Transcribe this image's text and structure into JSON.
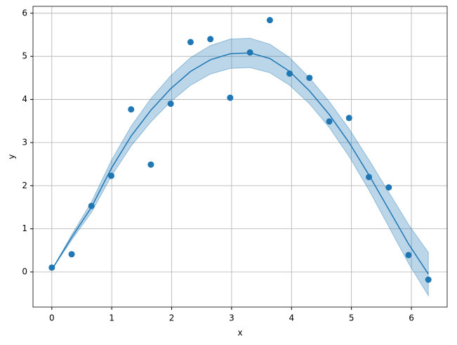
{
  "chart_data": {
    "type": "scatter-fit",
    "x_label": "x",
    "y_label": "y",
    "x": [
      0,
      0.331,
      0.661,
      0.992,
      1.323,
      1.653,
      1.984,
      2.315,
      2.646,
      2.976,
      3.307,
      3.638,
      3.968,
      4.299,
      4.63,
      4.96,
      5.291,
      5.622,
      5.952,
      6.283
    ],
    "series": [
      {
        "type": "scatter",
        "color": "#1f77b4",
        "values": [
          0.1,
          0.41,
          1.53,
          2.23,
          3.77,
          2.49,
          3.9,
          5.33,
          5.4,
          4.04,
          5.09,
          5.84,
          4.6,
          4.5,
          3.49,
          3.57,
          2.2,
          1.96,
          0.39,
          -0.18
        ]
      },
      {
        "type": "line",
        "color": "#1f77b4",
        "values": [
          0.05,
          0.8,
          1.5,
          2.4,
          3.15,
          3.75,
          4.25,
          4.65,
          4.92,
          5.06,
          5.08,
          4.95,
          4.65,
          4.2,
          3.65,
          3.0,
          2.25,
          1.45,
          0.65,
          -0.05
        ],
        "lower": [
          0.05,
          0.74,
          1.38,
          2.22,
          2.92,
          3.48,
          3.95,
          4.33,
          4.59,
          4.72,
          4.74,
          4.62,
          4.33,
          3.9,
          3.35,
          2.68,
          1.9,
          1.05,
          0.2,
          -0.55
        ],
        "upper": [
          0.05,
          0.86,
          1.62,
          2.58,
          3.38,
          4.02,
          4.55,
          4.97,
          5.25,
          5.4,
          5.42,
          5.28,
          4.97,
          4.5,
          3.95,
          3.32,
          2.6,
          1.85,
          1.1,
          0.45
        ]
      }
    ],
    "xlim": [
      -0.314,
      6.597
    ],
    "ylim": [
      -0.815,
      6.16
    ],
    "xticks": [
      0,
      1,
      2,
      3,
      4,
      5,
      6
    ],
    "yticks": [
      0,
      1,
      2,
      3,
      4,
      5,
      6
    ],
    "grid": true
  }
}
